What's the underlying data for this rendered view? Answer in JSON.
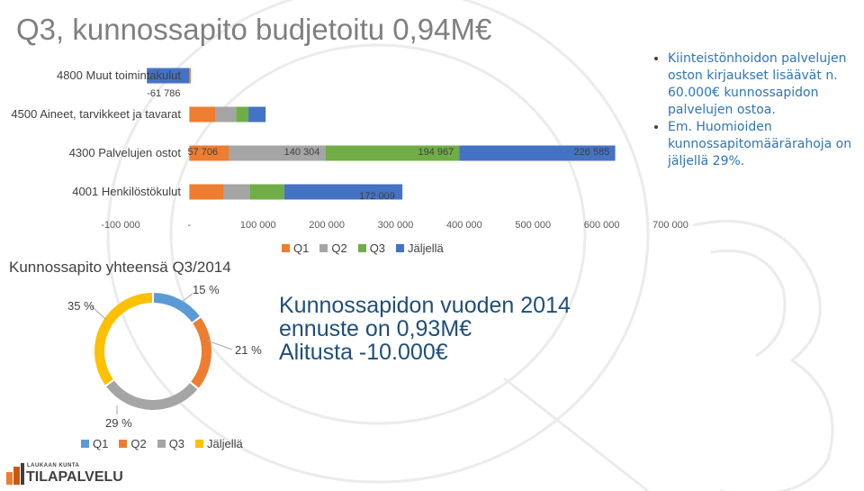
{
  "title": "Q3, kunnossapito budjetoitu 0,94M€",
  "colors": {
    "q1": "#5b9bd5",
    "q2": "#ed7d31",
    "q3": "#a5a5a5",
    "jaljella": "#ffc000",
    "bar_green": "#70ad47",
    "bar_blue": "#4472c4"
  },
  "chart_data": [
    {
      "type": "bar",
      "orientation": "horizontal",
      "stacked": true,
      "categories": [
        "4800 Muut toimintakulut",
        "4500 Aineet, tarvikkeet ja tavarat",
        "4300 Palvelujen ostot",
        "4001 Henkilöstökulut"
      ],
      "series": [
        {
          "name": "Q1",
          "values": [
            2000,
            38000,
            57706,
            50000
          ]
        },
        {
          "name": "Q2",
          "values": [
            0,
            30000,
            140304,
            38000
          ]
        },
        {
          "name": "Q3",
          "values": [
            0,
            18000,
            194967,
            50000
          ]
        },
        {
          "name": "Jäljellä",
          "values": [
            -61786,
            25000,
            226585,
            172009
          ]
        }
      ],
      "data_labels": [
        {
          "category": "4800 Muut toimintakulut",
          "series": "Jäljellä",
          "text": "-61 786"
        },
        {
          "category": "4300 Palvelujen ostot",
          "series": "Q1",
          "text": "57 706"
        },
        {
          "category": "4300 Palvelujen ostot",
          "series": "Q2",
          "text": "140 304"
        },
        {
          "category": "4300 Palvelujen ostot",
          "series": "Q3",
          "text": "194 967"
        },
        {
          "category": "4300 Palvelujen ostot",
          "series": "Jäljellä",
          "text": "226 585"
        },
        {
          "category": "4001 Henkilöstökulut",
          "series": "Jäljellä",
          "text": "172 009"
        }
      ],
      "xlim": [
        -100000,
        700000
      ],
      "ticks": [
        -100000,
        0,
        100000,
        200000,
        300000,
        400000,
        500000,
        600000,
        700000
      ],
      "tick_labels": [
        "-100 000",
        "-",
        "100 000",
        "200 000",
        "300 000",
        "400 000",
        "500 000",
        "600 000",
        "700 000"
      ],
      "legend": [
        "Q1",
        "Q2",
        "Q3",
        "Jäljellä"
      ],
      "legend_position": "bottom"
    },
    {
      "type": "pie",
      "donut": true,
      "title": "Kunnossapito yhteensä Q3/2014",
      "categories": [
        "Q1",
        "Q2",
        "Q3",
        "Jäljellä"
      ],
      "values": [
        15,
        21,
        29,
        35
      ],
      "labels": [
        "15 %",
        "21 %",
        "29 %",
        "35 %"
      ],
      "legend_position": "bottom"
    }
  ],
  "bullets": [
    "Kiinteistönhoidon palvelujen oston kirjaukset lisäävät n. 60.000€ kunnossapidon palvelujen ostoa.",
    "Em. Huomioiden kunnossapitomäärärahoja on jäljellä 29%."
  ],
  "forecast": {
    "line1": "Kunnossapidon vuoden 2014",
    "line2": "ennuste on 0,93M€",
    "line3": "Alitusta -10.000€"
  },
  "logo": {
    "top": "LAUKAAN KUNTA",
    "main": "TILAPALVELU"
  }
}
